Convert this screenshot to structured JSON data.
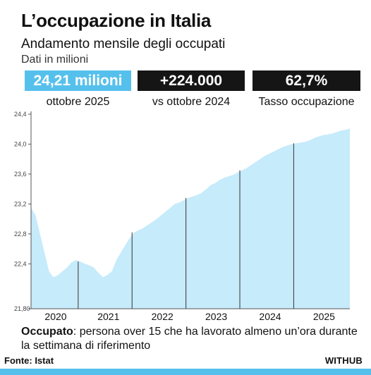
{
  "header": {
    "title": "L’occupazione in Italia",
    "subtitle": "Andamento mensile degli occupati",
    "unit": "Dati in milioni"
  },
  "kpis": [
    {
      "value": "24,21 milioni",
      "label": "ottobre 2025",
      "bg": "#56c0ec",
      "fg": "#ffffff"
    },
    {
      "value": "+224.000",
      "label": "vs ottobre 2024",
      "bg": "#151515",
      "fg": "#ffffff"
    },
    {
      "value": "62,7%",
      "label": "Tasso occupazione",
      "bg": "#151515",
      "fg": "#ffffff"
    }
  ],
  "footnote": {
    "term": "Occupato",
    "text": ": persona over 15 che ha lavorato almeno un’ora durante la settimana di riferimento"
  },
  "footer": {
    "source": "Fonte: Istat",
    "brand": "WITHUB"
  },
  "colors": {
    "area": "#c6ebfb",
    "accent": "#56c0ec",
    "dark": "#151515"
  },
  "chart_data": {
    "type": "area",
    "x_unit": "month",
    "ylim": [
      21.8,
      24.4
    ],
    "y_ticks": [
      "21,80",
      "22,4",
      "22,8",
      "23,2",
      "23,6",
      "24,0",
      "24,4"
    ],
    "y_tick_values": [
      21.8,
      22.4,
      22.8,
      23.2,
      23.6,
      24.0,
      24.4
    ],
    "x_ticks": [
      "2020",
      "2021",
      "2022",
      "2023",
      "2024",
      "2025"
    ],
    "grid": false,
    "year_dividers": true,
    "series": [
      {
        "values": [
          23.15,
          23.05,
          22.8,
          22.55,
          22.3,
          22.22,
          22.25,
          22.3,
          22.35,
          22.42,
          22.45,
          22.43,
          22.4,
          22.38,
          22.35,
          22.28,
          22.22,
          22.25,
          22.3,
          22.45,
          22.55,
          22.65,
          22.75,
          22.82,
          22.85,
          22.88,
          22.92,
          22.96,
          23.0,
          23.05,
          23.1,
          23.15,
          23.2,
          23.22,
          23.25,
          23.28,
          23.3,
          23.32,
          23.35,
          23.4,
          23.45,
          23.48,
          23.52,
          23.55,
          23.57,
          23.59,
          23.62,
          23.65,
          23.68,
          23.72,
          23.76,
          23.8,
          23.84,
          23.87,
          23.9,
          23.93,
          23.96,
          23.98,
          24.0,
          24.01,
          24.02,
          24.03,
          24.05,
          24.08,
          24.1,
          24.12,
          24.13,
          24.14,
          24.16,
          24.18,
          24.19,
          24.21
        ]
      }
    ]
  }
}
